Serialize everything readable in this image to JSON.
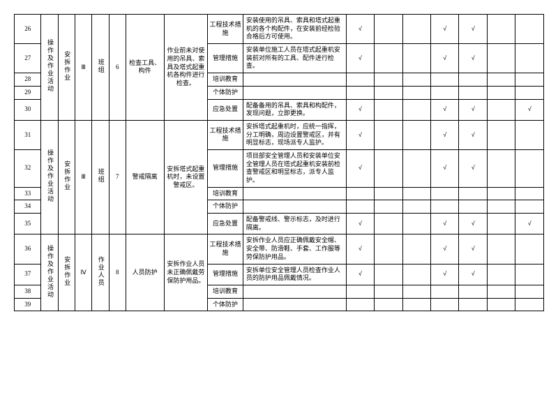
{
  "colwidths": [
    "38",
    "24",
    "24",
    "24",
    "24",
    "24",
    "54",
    "62",
    "50",
    "146",
    "40",
    "40",
    "40",
    "40",
    "40",
    "40",
    "40"
  ],
  "groups": [
    {
      "activity": "操作及作业活动",
      "task": "安拆作业",
      "level": "Ⅲ",
      "team": "班组",
      "num": "6",
      "hazard": "检查工具、构件",
      "desc": "作业前未对使用的吊具、索具及塔式起重机各构件进行检查。",
      "rows": [
        {
          "rn": "26",
          "cat": "工程技术措施",
          "measure": "安装使用的吊具、索具和塔式起重机的各个构配件，在安装前经检验合格后方可使用。",
          "chk": [
            1,
            0,
            0,
            1,
            1,
            0,
            0
          ]
        },
        {
          "rn": "27",
          "cat": "管理措施",
          "measure": "安装单位施工人员在塔式起重机安装前对所有的工具、配件进行检查。",
          "chk": [
            1,
            0,
            0,
            1,
            1,
            0,
            0
          ]
        },
        {
          "rn": "28",
          "cat": "培训教育",
          "measure": "",
          "chk": [
            0,
            0,
            0,
            0,
            0,
            0,
            0
          ]
        },
        {
          "rn": "29",
          "cat": "个体防护",
          "measure": "",
          "chk": [
            0,
            0,
            0,
            0,
            0,
            0,
            0
          ]
        },
        {
          "rn": "30",
          "cat": "应急处置",
          "measure": "配备备用的吊具、索具和构配件，发现问题，立即更换。",
          "chk": [
            1,
            0,
            0,
            1,
            1,
            0,
            1
          ]
        }
      ]
    },
    {
      "activity": "操作及作业活动",
      "task": "安拆作业",
      "level": "Ⅲ",
      "team": "班组",
      "num": "7",
      "hazard": "警戒隔离",
      "desc": "安拆塔式起重机时，未设置警戒区。",
      "rows": [
        {
          "rn": "31",
          "cat": "工程技术措施",
          "measure": "安拆塔式起重机时，应统一指挥，分工明确，周边设置警戒区，并有明显标志，现场派专人监护。",
          "chk": [
            1,
            0,
            0,
            1,
            1,
            0,
            0
          ]
        },
        {
          "rn": "32",
          "cat": "管理措施",
          "measure": "项目部安全管理人员和安装单位安全管理人员在塔式起重机安装前检查警戒区和明显标志，派专人监护。",
          "chk": [
            1,
            0,
            0,
            1,
            1,
            0,
            0
          ]
        },
        {
          "rn": "33",
          "cat": "培训教育",
          "measure": "",
          "chk": [
            0,
            0,
            0,
            0,
            0,
            0,
            0
          ]
        },
        {
          "rn": "34",
          "cat": "个体防护",
          "measure": "",
          "chk": [
            0,
            0,
            0,
            0,
            0,
            0,
            0
          ]
        },
        {
          "rn": "35",
          "cat": "应急处置",
          "measure": "配备警戒线、警示标志，及时进行隔离。",
          "chk": [
            1,
            0,
            0,
            1,
            1,
            0,
            1
          ]
        }
      ]
    },
    {
      "activity": "操作及作业活动",
      "task": "安拆作业",
      "level": "Ⅳ",
      "team": "作业人员",
      "num": "8",
      "hazard": "人员防护",
      "desc": "安拆作业人员未正确佩戴劳保防护用品。",
      "rows": [
        {
          "rn": "36",
          "cat": "工程技术措施",
          "measure": "安拆作业人员应正确佩戴安全帽、安全带、防滑鞋、手套、工作服等劳保防护用品。",
          "chk": [
            1,
            0,
            0,
            1,
            1,
            0,
            0
          ]
        },
        {
          "rn": "37",
          "cat": "管理措施",
          "measure": "安拆单位安全管理人员检查作业人员的防护用品佩戴情况。",
          "chk": [
            1,
            0,
            0,
            1,
            1,
            0,
            0
          ]
        },
        {
          "rn": "38",
          "cat": "培训教育",
          "measure": "",
          "chk": [
            0,
            0,
            0,
            0,
            0,
            0,
            0
          ]
        },
        {
          "rn": "39",
          "cat": "个体防护",
          "measure": "",
          "chk": [
            0,
            0,
            0,
            0,
            0,
            0,
            0
          ]
        }
      ]
    }
  ],
  "checkmark": "√"
}
